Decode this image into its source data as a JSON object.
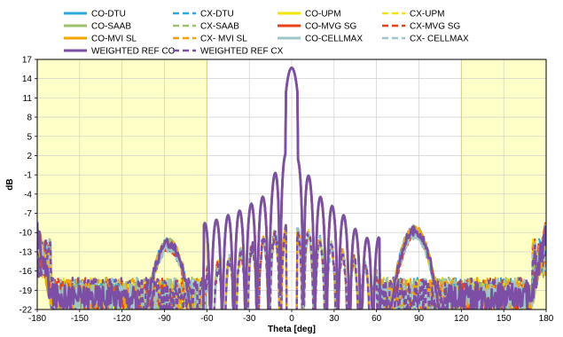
{
  "chart_data": {
    "type": "line",
    "title": "",
    "xlabel": "Theta [deg]",
    "ylabel": "dB",
    "xlim": [
      -180,
      180
    ],
    "ylim": [
      -22,
      17
    ],
    "x_ticks": [
      -180,
      -150,
      -120,
      -90,
      -60,
      -30,
      0,
      30,
      60,
      90,
      120,
      150,
      180
    ],
    "y_ticks": [
      17,
      14,
      11,
      8,
      5,
      2,
      -1,
      -4,
      -7,
      -10,
      -13,
      -16,
      -19,
      -22
    ],
    "grid": true,
    "shaded_regions": [
      [
        -180,
        -60
      ],
      [
        120,
        180
      ]
    ],
    "legend_position": "top",
    "colors": {
      "shade": "#ffffc8",
      "grid": "#c8c8c8"
    },
    "series": [
      {
        "name": "CO-DTU",
        "color": "#2ea8e0",
        "style": "solid",
        "group": "co",
        "width": 2.5
      },
      {
        "name": "CX-DTU",
        "color": "#2ea8e0",
        "style": "dashed",
        "group": "cx",
        "width": 2.2
      },
      {
        "name": "CO-UPM",
        "color": "#f2e600",
        "style": "solid",
        "group": "co",
        "width": 2.5
      },
      {
        "name": "CX-UPM",
        "color": "#f2e600",
        "style": "dashed",
        "group": "cx",
        "width": 2.2
      },
      {
        "name": "CO-SAAB",
        "color": "#9cc16a",
        "style": "solid",
        "group": "co",
        "width": 2.5
      },
      {
        "name": "CX-SAAB",
        "color": "#9cc16a",
        "style": "dashed",
        "group": "cx",
        "width": 2.2
      },
      {
        "name": "CO-MVG SG",
        "color": "#e8401c",
        "style": "solid",
        "group": "co",
        "width": 2.5
      },
      {
        "name": "CX-MVG SG",
        "color": "#e8401c",
        "style": "dashed",
        "group": "cx",
        "width": 2.2
      },
      {
        "name": "CO-MVI SL",
        "color": "#f5a300",
        "style": "solid",
        "group": "co",
        "width": 2.5
      },
      {
        "name": "CX- MVI SL",
        "color": "#f5a300",
        "style": "dashed",
        "group": "cx",
        "width": 2.2
      },
      {
        "name": "CO-CELLMAX",
        "color": "#9cc6c8",
        "style": "solid",
        "group": "co",
        "width": 2.5
      },
      {
        "name": "CX- CELLMAX",
        "color": "#9cc6c8",
        "style": "dashed",
        "group": "cx",
        "width": 2.2
      },
      {
        "name": "WEIGHTED REF CO",
        "color": "#7d4ea6",
        "style": "solid",
        "group": "co",
        "width": 2.8
      },
      {
        "name": "WEIGHTED REF CX",
        "color": "#7d4ea6",
        "style": "dashed",
        "group": "cx",
        "width": 2.5
      }
    ],
    "main_beam": {
      "peak_angle": 0,
      "peak_db": 15.7,
      "sidelobes": [
        {
          "angle": 8,
          "db": 1.0
        },
        {
          "angle": 16,
          "db": -3.5
        },
        {
          "angle": 24,
          "db": -5.5
        },
        {
          "angle": 33,
          "db": -6.5
        },
        {
          "angle": 41,
          "db": -8.5
        },
        {
          "angle": 50,
          "db": -11.0
        },
        {
          "angle": 60,
          "db": -11.0
        },
        {
          "angle": 87,
          "db": -10.0
        },
        {
          "angle": -8,
          "db": 2.5
        },
        {
          "angle": -16,
          "db": -4.3
        },
        {
          "angle": -24,
          "db": -4.8
        },
        {
          "angle": -33,
          "db": -6.5
        },
        {
          "angle": -41,
          "db": -7.0
        },
        {
          "angle": -50,
          "db": -8.0
        },
        {
          "angle": -60,
          "db": -8.5
        },
        {
          "angle": -87,
          "db": -12.0
        }
      ]
    }
  }
}
